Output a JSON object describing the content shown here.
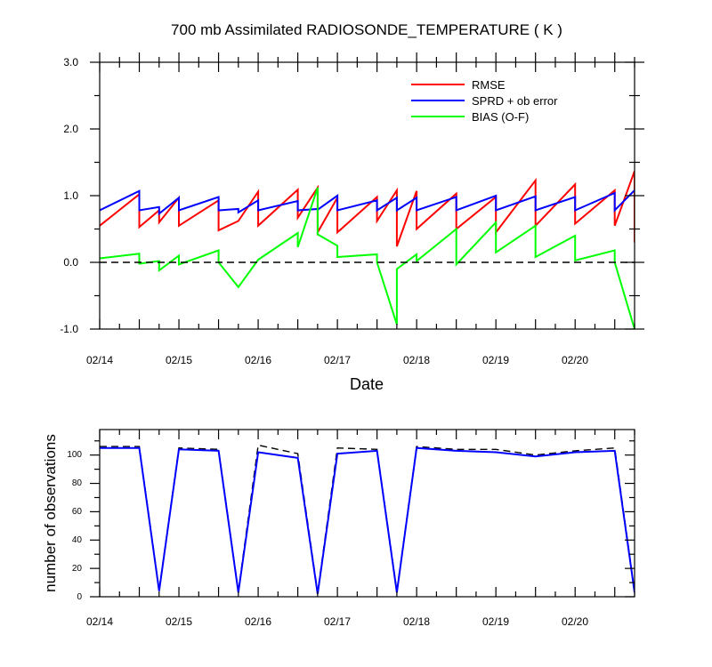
{
  "chart_data": [
    {
      "type": "line",
      "title": "700 mb Assimilated RADIOSONDE_TEMPERATURE ( K )",
      "xlabel": "Date",
      "ylabel": "",
      "xlim": [
        0,
        6.75
      ],
      "ylim": [
        -1.0,
        3.0
      ],
      "x_tick_labels": [
        "02/14",
        "02/15",
        "02/16",
        "02/17",
        "02/18",
        "02/19",
        "02/20"
      ],
      "x_tick_days": [
        0,
        1,
        2,
        3,
        4,
        5,
        6
      ],
      "y_ticks": [
        -1.0,
        0.0,
        1.0,
        2.0,
        3.0
      ],
      "y_tick_labels": [
        "-1.0",
        "0.0",
        "1.0",
        "2.0",
        "3.0"
      ],
      "legend": {
        "placement": "top-right",
        "entries": [
          "RMSE",
          "SPRD + ob error",
          "BIAS (O-F)"
        ]
      },
      "series": [
        {
          "name": "RMSE",
          "color": "#ff0000",
          "points": [
            [
              0,
              0.55
            ],
            [
              0.5,
              1.02
            ],
            [
              0.5,
              0.53
            ],
            [
              0.75,
              0.78
            ],
            [
              0.75,
              0.6
            ],
            [
              1.0,
              0.97
            ],
            [
              1.0,
              0.55
            ],
            [
              1.5,
              0.93
            ],
            [
              1.5,
              0.48
            ],
            [
              1.75,
              0.62
            ],
            [
              2.0,
              1.06
            ],
            [
              2.0,
              0.55
            ],
            [
              2.5,
              1.09
            ],
            [
              2.5,
              0.67
            ],
            [
              2.75,
              1.12
            ],
            [
              2.75,
              0.45
            ],
            [
              3.0,
              0.97
            ],
            [
              3.0,
              0.45
            ],
            [
              3.5,
              0.98
            ],
            [
              3.5,
              0.62
            ],
            [
              3.75,
              1.08
            ],
            [
              3.75,
              0.24
            ],
            [
              4.0,
              1.07
            ],
            [
              4.0,
              0.5
            ],
            [
              4.5,
              1.03
            ],
            [
              4.5,
              0.5
            ],
            [
              5.0,
              0.98
            ],
            [
              5.0,
              0.45
            ],
            [
              5.5,
              1.23
            ],
            [
              5.5,
              0.55
            ],
            [
              6.0,
              1.17
            ],
            [
              6.0,
              0.58
            ],
            [
              6.5,
              1.08
            ],
            [
              6.5,
              0.55
            ],
            [
              6.75,
              1.37
            ],
            [
              6.75,
              0.3
            ]
          ]
        },
        {
          "name": "SPRD + ob error",
          "color": "#0000ff",
          "points": [
            [
              0,
              0.78
            ],
            [
              0.5,
              1.07
            ],
            [
              0.5,
              0.78
            ],
            [
              0.75,
              0.83
            ],
            [
              0.75,
              0.73
            ],
            [
              1.0,
              0.97
            ],
            [
              1.0,
              0.78
            ],
            [
              1.5,
              0.98
            ],
            [
              1.5,
              0.78
            ],
            [
              1.75,
              0.8
            ],
            [
              1.75,
              0.75
            ],
            [
              2.0,
              0.93
            ],
            [
              2.0,
              0.78
            ],
            [
              2.5,
              0.92
            ],
            [
              2.5,
              0.78
            ],
            [
              2.75,
              0.8
            ],
            [
              2.75,
              0.79
            ],
            [
              3.0,
              1.0
            ],
            [
              3.0,
              0.78
            ],
            [
              3.5,
              0.93
            ],
            [
              3.5,
              0.78
            ],
            [
              3.75,
              0.97
            ],
            [
              3.75,
              0.78
            ],
            [
              4.0,
              0.97
            ],
            [
              4.0,
              0.78
            ],
            [
              4.5,
              0.98
            ],
            [
              4.5,
              0.78
            ],
            [
              5.0,
              1.0
            ],
            [
              5.0,
              0.78
            ],
            [
              5.5,
              0.99
            ],
            [
              5.5,
              0.78
            ],
            [
              6.0,
              0.98
            ],
            [
              6.0,
              0.78
            ],
            [
              6.5,
              1.04
            ],
            [
              6.5,
              0.78
            ],
            [
              6.75,
              1.08
            ]
          ]
        },
        {
          "name": "BIAS (O-F)",
          "color": "#00ff00",
          "points": [
            [
              0,
              0.06
            ],
            [
              0.5,
              0.13
            ],
            [
              0.5,
              -0.02
            ],
            [
              0.75,
              0.02
            ],
            [
              0.75,
              -0.12
            ],
            [
              1.0,
              0.1
            ],
            [
              1.0,
              -0.03
            ],
            [
              1.5,
              0.18
            ],
            [
              1.5,
              0.0
            ],
            [
              1.75,
              -0.37
            ],
            [
              2.0,
              0.04
            ],
            [
              2.5,
              0.44
            ],
            [
              2.5,
              0.23
            ],
            [
              2.75,
              1.12
            ],
            [
              2.75,
              0.42
            ],
            [
              3.0,
              0.25
            ],
            [
              3.0,
              0.08
            ],
            [
              3.5,
              0.12
            ],
            [
              3.5,
              0.0
            ],
            [
              3.75,
              -0.93
            ],
            [
              3.75,
              -0.1
            ],
            [
              4.0,
              0.12
            ],
            [
              4.0,
              0.02
            ],
            [
              4.5,
              0.5
            ],
            [
              4.5,
              -0.03
            ],
            [
              5.0,
              0.6
            ],
            [
              5.0,
              0.15
            ],
            [
              5.5,
              0.55
            ],
            [
              5.5,
              0.08
            ],
            [
              6.0,
              0.4
            ],
            [
              6.0,
              0.03
            ],
            [
              6.5,
              0.18
            ],
            [
              6.5,
              0.0
            ],
            [
              6.75,
              -1.0
            ]
          ]
        },
        {
          "name": "zero reference",
          "color": "#000000",
          "dashed": true,
          "points": [
            [
              0,
              0
            ],
            [
              6.75,
              0
            ]
          ]
        }
      ]
    },
    {
      "type": "line",
      "title": "",
      "xlabel": "",
      "ylabel": "number of observations",
      "xlim": [
        0,
        6.75
      ],
      "ylim": [
        0,
        118
      ],
      "x_tick_labels": [
        "02/14",
        "02/15",
        "02/16",
        "02/17",
        "02/18",
        "02/19",
        "02/20"
      ],
      "x_tick_days": [
        0,
        1,
        2,
        3,
        4,
        5,
        6
      ],
      "y_ticks": [
        0,
        20,
        40,
        60,
        80,
        100
      ],
      "y_tick_labels": [
        "0",
        "20",
        "40",
        "60",
        "80",
        "100"
      ],
      "series": [
        {
          "name": "obs possible",
          "color": "#000000",
          "dashed": true,
          "points": [
            [
              0,
              106
            ],
            [
              0.5,
              106
            ],
            [
              0.75,
              5
            ],
            [
              1.0,
              105
            ],
            [
              1.5,
              104
            ],
            [
              1.75,
              4
            ],
            [
              2.0,
              107
            ],
            [
              2.5,
              101
            ],
            [
              2.75,
              3
            ],
            [
              3.0,
              105
            ],
            [
              3.5,
              104
            ],
            [
              3.75,
              4
            ],
            [
              4.0,
              106
            ],
            [
              4.5,
              104
            ],
            [
              5.0,
              104
            ],
            [
              5.5,
              100
            ],
            [
              6.0,
              103
            ],
            [
              6.5,
              105
            ],
            [
              6.75,
              4
            ]
          ]
        },
        {
          "name": "obs used",
          "color": "#0000ff",
          "points": [
            [
              0,
              105
            ],
            [
              0.5,
              105
            ],
            [
              0.75,
              4
            ],
            [
              1.0,
              104
            ],
            [
              1.5,
              103
            ],
            [
              1.75,
              3
            ],
            [
              2.0,
              102
            ],
            [
              2.5,
              98
            ],
            [
              2.75,
              2
            ],
            [
              3.0,
              101
            ],
            [
              3.5,
              103
            ],
            [
              3.75,
              3
            ],
            [
              4.0,
              105
            ],
            [
              4.5,
              103
            ],
            [
              5.0,
              102
            ],
            [
              5.5,
              99
            ],
            [
              6.0,
              102
            ],
            [
              6.5,
              103
            ],
            [
              6.75,
              3
            ]
          ]
        }
      ]
    }
  ]
}
